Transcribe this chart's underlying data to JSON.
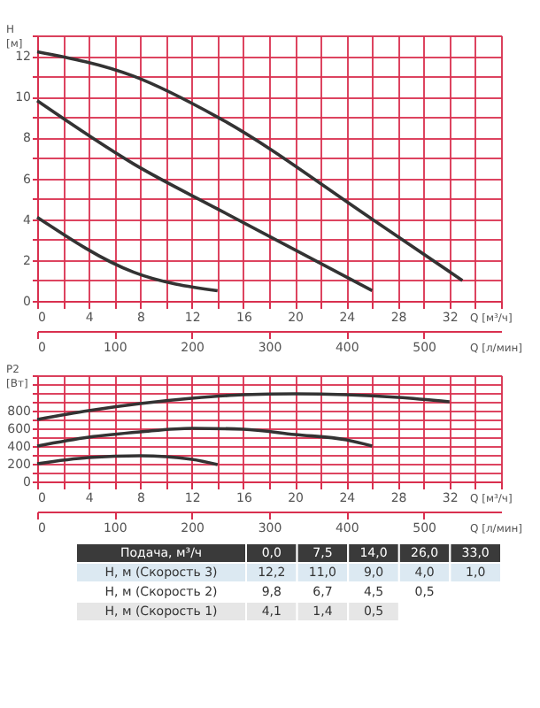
{
  "chart_data": [
    {
      "type": "line",
      "xlabel": "Q [м³/ч]",
      "ylabel": "H [м]",
      "x2label": "Q [л/мин]",
      "x": [
        0,
        7.5,
        14,
        26,
        33
      ],
      "series": [
        {
          "color": "#333333",
          "values": [
            12.2,
            11.0,
            9.0,
            4.0,
            1.0
          ]
        },
        {
          "color": "#333333",
          "values": [
            9.8,
            6.7,
            4.5,
            0.5,
            null
          ]
        },
        {
          "color": "#333333",
          "values": [
            4.1,
            1.4,
            0.5,
            null,
            null
          ]
        }
      ],
      "xlim": [
        0,
        36
      ],
      "xticks": [
        0,
        {
          "value": 2,
          "label": null
        },
        4,
        {
          "value": 6,
          "label": null
        },
        8,
        {
          "value": 10,
          "label": null
        },
        12,
        {
          "value": 14,
          "label": null
        },
        16,
        {
          "value": 18,
          "label": null
        },
        20,
        {
          "value": 22,
          "label": null
        },
        24,
        {
          "value": 26,
          "label": null
        },
        28,
        {
          "value": 30,
          "label": null
        },
        32,
        {
          "value": 34,
          "label": null
        },
        {
          "value": 36,
          "label": null
        }
      ],
      "ylim": [
        0,
        13
      ],
      "yticks": [
        0,
        {
          "value": 1,
          "label": null
        },
        2,
        {
          "value": 3,
          "label": null
        },
        4,
        {
          "value": 5,
          "label": null
        },
        6,
        {
          "value": 7,
          "label": null
        },
        8,
        {
          "value": 9,
          "label": null
        },
        10,
        {
          "value": 11,
          "label": null
        },
        12,
        {
          "value": 13,
          "label": null
        }
      ],
      "x2lim": [
        0,
        600
      ],
      "x2ticks": [
        0,
        100,
        200,
        300,
        400,
        500
      ],
      "grid": true,
      "legend": false
    },
    {
      "type": "line",
      "xlabel": "Q [м³/ч]",
      "ylabel": "P2 [Вт]",
      "x2label": "Q [л/мин]",
      "series": [
        {
          "color": "#333333",
          "x": [
            0,
            4,
            8,
            12,
            16,
            20,
            24,
            28,
            32
          ],
          "values": [
            700,
            800,
            880,
            940,
            980,
            990,
            980,
            950,
            900
          ]
        },
        {
          "color": "#333333",
          "x": [
            0,
            4,
            8,
            12,
            16,
            20,
            24,
            26
          ],
          "values": [
            400,
            500,
            560,
            600,
            590,
            530,
            470,
            400
          ]
        },
        {
          "color": "#333333",
          "x": [
            0,
            4,
            8,
            12,
            14
          ],
          "values": [
            200,
            270,
            290,
            250,
            190
          ]
        }
      ],
      "xlim": [
        0,
        36
      ],
      "xticks": [
        0,
        {
          "value": 2,
          "label": null
        },
        4,
        {
          "value": 6,
          "label": null
        },
        8,
        {
          "value": 10,
          "label": null
        },
        12,
        {
          "value": 14,
          "label": null
        },
        16,
        {
          "value": 18,
          "label": null
        },
        20,
        {
          "value": 22,
          "label": null
        },
        24,
        {
          "value": 26,
          "label": null
        },
        28,
        {
          "value": 30,
          "label": null
        },
        32,
        {
          "value": 34,
          "label": null
        },
        {
          "value": 36,
          "label": null
        }
      ],
      "ylim": [
        0,
        1200
      ],
      "yticks": [
        0,
        {
          "value": 100,
          "label": null
        },
        200,
        {
          "value": 300,
          "label": null
        },
        400,
        {
          "value": 500,
          "label": null
        },
        600,
        {
          "value": 700,
          "label": null
        },
        800,
        {
          "value": 900,
          "label": null
        },
        {
          "value": 1000,
          "label": null
        },
        {
          "value": 1100,
          "label": null
        },
        {
          "value": 1200,
          "label": null
        }
      ],
      "x2lim": [
        0,
        600
      ],
      "x2ticks": [
        0,
        100,
        200,
        300,
        400,
        500
      ],
      "grid": true,
      "legend": false
    },
    {
      "type": "other",
      "categories": [
        "Подача, м³/ч",
        "0,0",
        "7,5",
        "14,0",
        "26,0",
        "33,0"
      ],
      "y_categories": [
        "H, м (Скорость 3)",
        "H, м (Скорость 2)",
        "H, м (Скорость 1)"
      ],
      "cell_labels": [
        [
          "12,2",
          "11,0",
          "9,0",
          "4,0",
          "1,0"
        ],
        [
          "9,8",
          "6,7",
          "4,5",
          "0,5",
          null
        ],
        [
          "4,1",
          "1,4",
          "0,5",
          null,
          null
        ]
      ]
    }
  ]
}
